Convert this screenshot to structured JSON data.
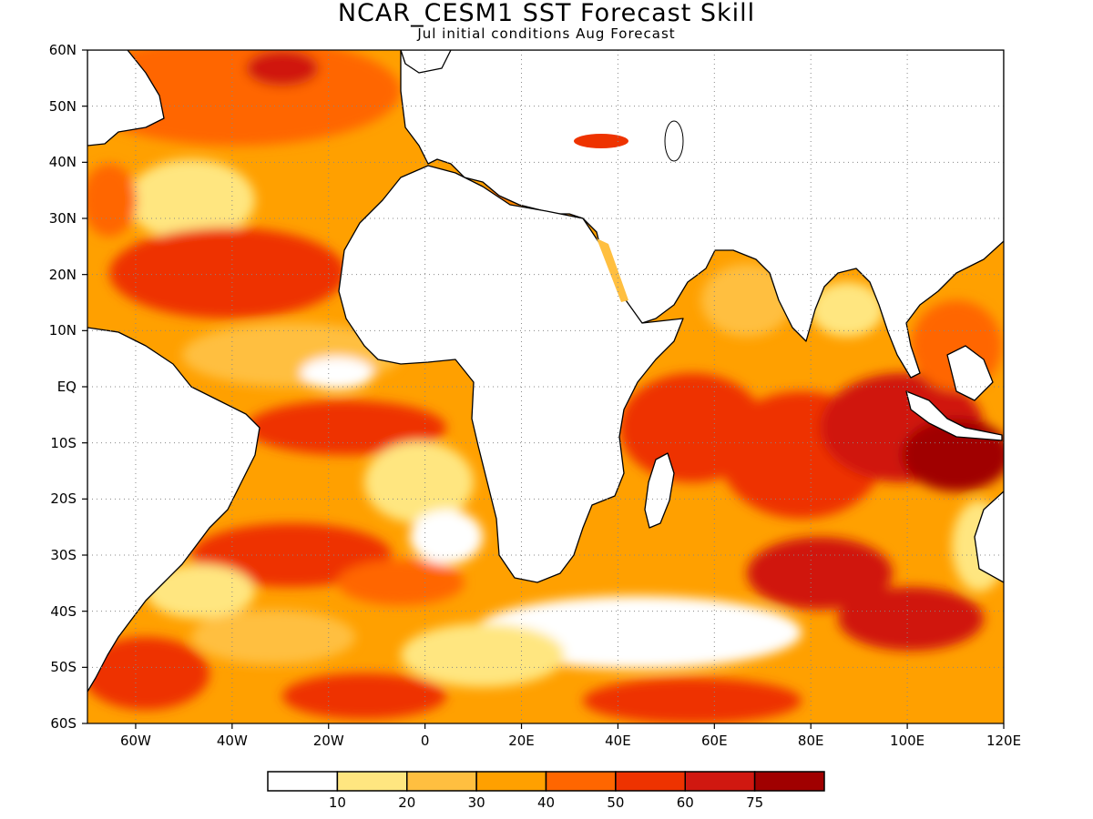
{
  "title": "NCAR_CESM1  SST Forecast Skill",
  "subtitle": "Jul initial conditions   Aug Forecast",
  "lat_labels": [
    "60N",
    "50N",
    "40N",
    "30N",
    "20N",
    "10N",
    "EQ",
    "10S",
    "20S",
    "30S",
    "40S",
    "50S",
    "60S"
  ],
  "lon_labels": [
    "60W",
    "40W",
    "20W",
    "0",
    "20E",
    "40E",
    "60E",
    "80E",
    "100E",
    "120E"
  ],
  "colorbar": {
    "colors": [
      "#ffffff",
      "#ffe680",
      "#ffbf40",
      "#ffa000",
      "#ff6600",
      "#ee3300",
      "#d01810",
      "#a00000"
    ],
    "labels": [
      "10",
      "20",
      "30",
      "40",
      "50",
      "60",
      "75"
    ]
  },
  "map_extent": {
    "lon": [
      -70,
      120
    ],
    "lat": [
      -60,
      60
    ]
  }
}
